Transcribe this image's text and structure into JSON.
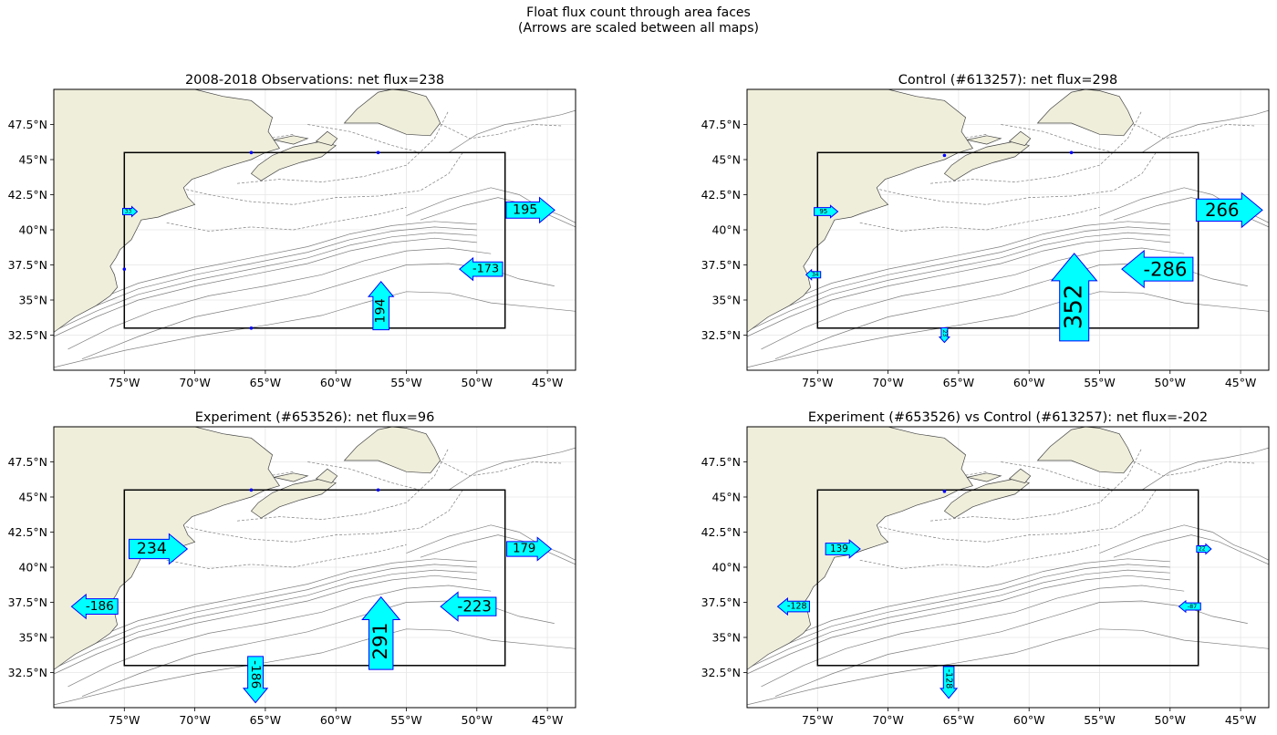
{
  "figure": {
    "title_line1": "Float flux count through area faces",
    "title_line2": "(Arrows are scaled between all maps)"
  },
  "colors": {
    "land": "#efeedb",
    "arrow_fill": "#00ffff",
    "arrow_edge": "#0000ff",
    "box": "#000000",
    "contour": "#7f7f7f"
  },
  "axes": {
    "lon_range": [
      -80,
      -43
    ],
    "lat_range": [
      30,
      50
    ],
    "lon_ticks": [
      -75,
      -70,
      -65,
      -60,
      -55,
      -50,
      -45
    ],
    "lon_tick_labels": [
      "75°W",
      "70°W",
      "65°W",
      "60°W",
      "55°W",
      "50°W",
      "45°W"
    ],
    "lat_ticks": [
      32.5,
      35,
      37.5,
      40,
      42.5,
      45,
      47.5
    ],
    "lat_tick_labels": [
      "32.5°N",
      "35°N",
      "37.5°N",
      "40°N",
      "42.5°N",
      "45°N",
      "47.5°N"
    ],
    "area_box": {
      "lon": [
        -75,
        -48
      ],
      "lat": [
        33,
        45.5
      ]
    }
  },
  "panels": [
    {
      "title": "2008-2018 Observations: net flux=238",
      "arrows": [
        {
          "label": "195",
          "value": 195,
          "direction": "east",
          "lon": -46.2,
          "lat": 41.4
        },
        {
          "label": "-173",
          "value": -173,
          "direction": "west",
          "lon": -49.7,
          "lat": 37.2
        },
        {
          "label": "194",
          "value": 194,
          "direction": "north",
          "lon": -56.8,
          "lat": 34.6
        },
        {
          "label": "33",
          "value": 33,
          "direction": "east",
          "lon": -74.6,
          "lat": 41.3
        }
      ],
      "markers": [
        {
          "lon": -66,
          "lat": 45.5
        },
        {
          "lon": -57,
          "lat": 45.5
        },
        {
          "lon": -75,
          "lat": 37.2
        },
        {
          "lon": -66,
          "lat": 33
        }
      ]
    },
    {
      "title": "Control (#613257): net flux=298",
      "arrows": [
        {
          "label": "266",
          "value": 266,
          "direction": "east",
          "lon": -45.8,
          "lat": 41.4
        },
        {
          "label": "-286",
          "value": -286,
          "direction": "west",
          "lon": -50.9,
          "lat": 37.2
        },
        {
          "label": "352",
          "value": 352,
          "direction": "north",
          "lon": -56.8,
          "lat": 35.2
        },
        {
          "label": "95",
          "value": 95,
          "direction": "east",
          "lon": -74.4,
          "lat": 41.3
        },
        {
          "label": "34",
          "value": 34,
          "direction": "west",
          "lon": -75.3,
          "lat": 36.8
        },
        {
          "label": "23",
          "value": 23,
          "direction": "south",
          "lon": -66,
          "lat": 32.5
        }
      ],
      "markers": [
        {
          "lon": -66,
          "lat": 45.3
        },
        {
          "lon": -57,
          "lat": 45.5
        }
      ]
    },
    {
      "title": "Experiment (#653526): net flux=96",
      "arrows": [
        {
          "label": "234",
          "value": 234,
          "direction": "east",
          "lon": -72.6,
          "lat": 41.3
        },
        {
          "label": "179",
          "value": 179,
          "direction": "east",
          "lon": -46.3,
          "lat": 41.3
        },
        {
          "label": "-186",
          "value": -186,
          "direction": "west",
          "lon": -77.1,
          "lat": 37.2
        },
        {
          "label": "-223",
          "value": -223,
          "direction": "west",
          "lon": -50.6,
          "lat": 37.2
        },
        {
          "label": "291",
          "value": 291,
          "direction": "north",
          "lon": -56.8,
          "lat": 35.3
        },
        {
          "label": "-186",
          "value": -186,
          "direction": "south",
          "lon": -65.7,
          "lat": 32.0
        }
      ],
      "markers": [
        {
          "lon": -66,
          "lat": 45.5
        },
        {
          "lon": -57,
          "lat": 45.5
        }
      ]
    },
    {
      "title": "Experiment (#653526) vs Control (#613257): net flux=-202",
      "arrows": [
        {
          "label": "139",
          "value": 139,
          "direction": "east",
          "lon": -73.2,
          "lat": 41.3
        },
        {
          "label": "-128",
          "value": -128,
          "direction": "west",
          "lon": -76.7,
          "lat": 37.2
        },
        {
          "label": "-128",
          "value": -128,
          "direction": "south",
          "lon": -65.7,
          "lat": 31.8
        },
        {
          "label": "-87",
          "value": -87,
          "direction": "west",
          "lon": -48.6,
          "lat": 37.2
        },
        {
          "label": "22",
          "value": 22,
          "direction": "east",
          "lon": -47.6,
          "lat": 41.3
        }
      ],
      "markers": [
        {
          "lon": -66,
          "lat": 45.4
        }
      ]
    }
  ]
}
